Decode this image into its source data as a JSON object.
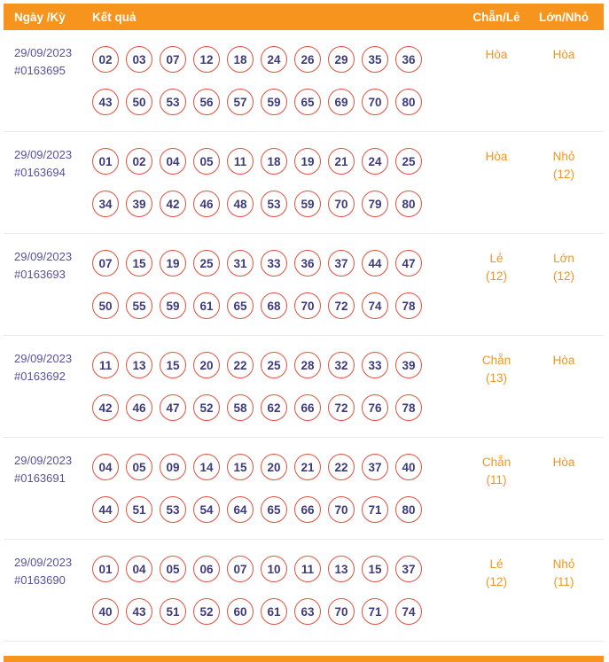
{
  "colors": {
    "header_bg": "#F7941E",
    "accent_orange": "#F7941E",
    "ball_border": "#E2503F",
    "number_text": "#3D3A7C",
    "date_text": "#56529E"
  },
  "header": {
    "date": "Ngày /Kỳ",
    "result": "Kết quả",
    "even_odd": "Chẵn/Lẻ",
    "big_small": "Lớn/Nhỏ"
  },
  "rows": [
    {
      "date": "29/09/2023",
      "id": "#0163695",
      "numbers_line1": [
        "02",
        "03",
        "07",
        "12",
        "18",
        "24",
        "26",
        "29",
        "35",
        "36"
      ],
      "numbers_line2": [
        "43",
        "50",
        "53",
        "56",
        "57",
        "59",
        "65",
        "69",
        "70",
        "80"
      ],
      "even_odd": {
        "label": "Hòa",
        "note": ""
      },
      "big_small": {
        "label": "Hòa",
        "note": ""
      }
    },
    {
      "date": "29/09/2023",
      "id": "#0163694",
      "numbers_line1": [
        "01",
        "02",
        "04",
        "05",
        "11",
        "18",
        "19",
        "21",
        "24",
        "25"
      ],
      "numbers_line2": [
        "34",
        "39",
        "42",
        "46",
        "48",
        "53",
        "59",
        "70",
        "79",
        "80"
      ],
      "even_odd": {
        "label": "Hòa",
        "note": ""
      },
      "big_small": {
        "label": "Nhỏ",
        "note": "(12)"
      }
    },
    {
      "date": "29/09/2023",
      "id": "#0163693",
      "numbers_line1": [
        "07",
        "15",
        "19",
        "25",
        "31",
        "33",
        "36",
        "37",
        "44",
        "47"
      ],
      "numbers_line2": [
        "50",
        "55",
        "59",
        "61",
        "65",
        "68",
        "70",
        "72",
        "74",
        "78"
      ],
      "even_odd": {
        "label": "Lẻ",
        "note": "(12)"
      },
      "big_small": {
        "label": "Lớn",
        "note": "(12)"
      }
    },
    {
      "date": "29/09/2023",
      "id": "#0163692",
      "numbers_line1": [
        "11",
        "13",
        "15",
        "20",
        "22",
        "25",
        "28",
        "32",
        "33",
        "39"
      ],
      "numbers_line2": [
        "42",
        "46",
        "47",
        "52",
        "58",
        "62",
        "66",
        "72",
        "76",
        "78"
      ],
      "even_odd": {
        "label": "Chẵn",
        "note": "(13)"
      },
      "big_small": {
        "label": "Hòa",
        "note": ""
      }
    },
    {
      "date": "29/09/2023",
      "id": "#0163691",
      "numbers_line1": [
        "04",
        "05",
        "09",
        "14",
        "15",
        "20",
        "21",
        "22",
        "37",
        "40"
      ],
      "numbers_line2": [
        "44",
        "51",
        "53",
        "54",
        "64",
        "65",
        "66",
        "70",
        "71",
        "80"
      ],
      "even_odd": {
        "label": "Chẵn",
        "note": "(11)"
      },
      "big_small": {
        "label": "Hòa",
        "note": ""
      }
    },
    {
      "date": "29/09/2023",
      "id": "#0163690",
      "numbers_line1": [
        "01",
        "04",
        "05",
        "06",
        "07",
        "10",
        "11",
        "13",
        "15",
        "37"
      ],
      "numbers_line2": [
        "40",
        "43",
        "51",
        "52",
        "60",
        "61",
        "63",
        "70",
        "71",
        "74"
      ],
      "even_odd": {
        "label": "Lẻ",
        "note": "(12)"
      },
      "big_small": {
        "label": "Nhỏ",
        "note": "(11)"
      }
    }
  ]
}
